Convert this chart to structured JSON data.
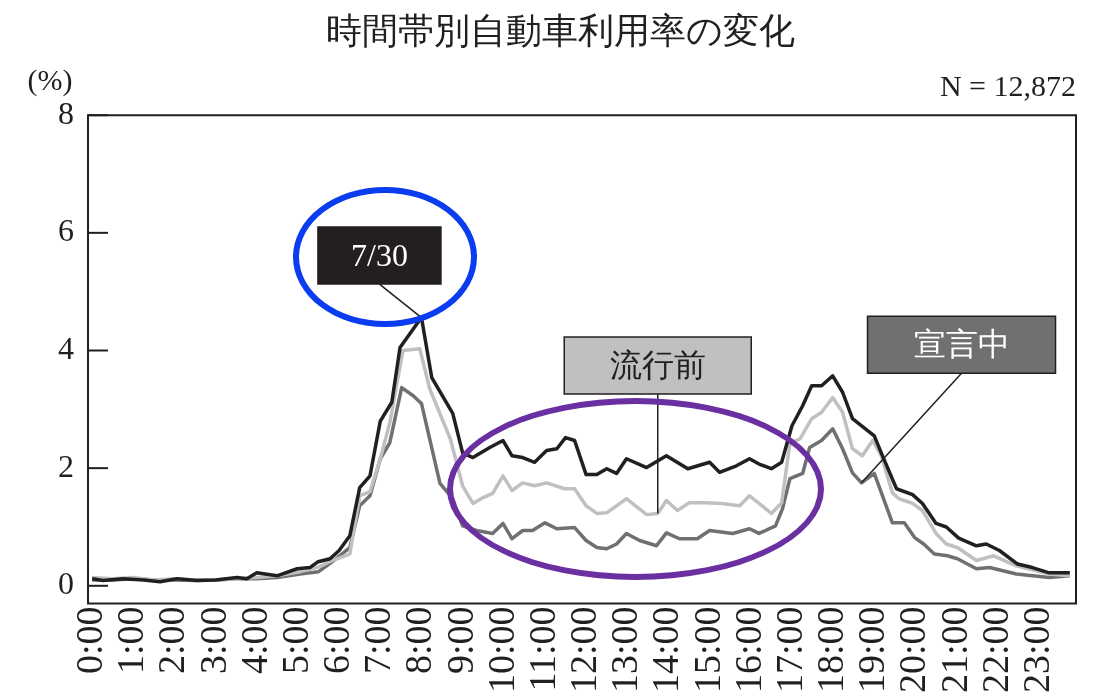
{
  "chart_data": {
    "type": "line",
    "title": "時間帯別自動車利用率の変化",
    "ylabel": "(%)",
    "annotations": [
      "N = 12,872"
    ],
    "xlim": [
      -0.1,
      23.9
    ],
    "ylim": [
      -0.3,
      8
    ],
    "yticks": [
      0,
      2,
      4,
      6,
      8
    ],
    "xticks": [
      {
        "value": 0,
        "label": "0:00"
      },
      {
        "value": 1,
        "label": "1:00"
      },
      {
        "value": 2,
        "label": "2:00"
      },
      {
        "value": 3,
        "label": "3:00"
      },
      {
        "value": 4,
        "label": "4:00"
      },
      {
        "value": 5,
        "label": "5:00"
      },
      {
        "value": 6,
        "label": "6:00"
      },
      {
        "value": 7,
        "label": "7:00"
      },
      {
        "value": 8,
        "label": "8:00"
      },
      {
        "value": 9,
        "label": "9:00"
      },
      {
        "value": 10,
        "label": "10:00"
      },
      {
        "value": 11,
        "label": "11:00"
      },
      {
        "value": 12,
        "label": "12:00"
      },
      {
        "value": 13,
        "label": "13:00"
      },
      {
        "value": 14,
        "label": "14:00"
      },
      {
        "value": 15,
        "label": "15:00"
      },
      {
        "value": 16,
        "label": "16:00"
      },
      {
        "value": 17,
        "label": "17:00"
      },
      {
        "value": 18,
        "label": "18:00"
      },
      {
        "value": 19,
        "label": "19:00"
      },
      {
        "value": 20,
        "label": "20:00"
      },
      {
        "value": 21,
        "label": "21:00"
      },
      {
        "value": 22,
        "label": "22:00"
      },
      {
        "value": 23,
        "label": "23:00"
      }
    ],
    "grid": false,
    "legend": false,
    "marker": "none",
    "line_style": "solid",
    "series": [
      {
        "name": "7/30",
        "color": "#231f20",
        "x": [
          0,
          0.27,
          0.75,
          1.25,
          1.65,
          2.06,
          2.55,
          3,
          3.52,
          3.76,
          4,
          4.49,
          4.98,
          5.29,
          5.49,
          5.78,
          6,
          6.26,
          6.5,
          6.75,
          7,
          7.28,
          7.48,
          8,
          8.25,
          8.76,
          9,
          9.25,
          9.66,
          9.98,
          10.2,
          10.46,
          10.75,
          11.04,
          11.29,
          11.5,
          11.72,
          12,
          12.26,
          12.5,
          12.74,
          12.98,
          13.47,
          13.95,
          14.47,
          15,
          15.24,
          15.65,
          15.97,
          16.2,
          16.5,
          16.75,
          17,
          17.26,
          17.48,
          17.72,
          17.99,
          18.23,
          18.47,
          19,
          19.2,
          19.54,
          19.93,
          20.17,
          20.5,
          20.75,
          21.05,
          21.48,
          21.72,
          22.04,
          22.48,
          22.84,
          23.25,
          23.75
        ],
        "values": [
          0.12,
          0.09,
          0.12,
          0.1,
          0.07,
          0.12,
          0.09,
          0.1,
          0.14,
          0.12,
          0.22,
          0.17,
          0.29,
          0.31,
          0.41,
          0.46,
          0.6,
          0.85,
          1.67,
          1.87,
          2.8,
          3.12,
          4.05,
          4.56,
          3.54,
          2.93,
          2.26,
          2.18,
          2.35,
          2.47,
          2.21,
          2.18,
          2.1,
          2.3,
          2.33,
          2.52,
          2.47,
          1.89,
          1.89,
          1.99,
          1.91,
          2.16,
          2.01,
          2.21,
          1.99,
          2.1,
          1.93,
          2.04,
          2.16,
          2.07,
          1.99,
          2.1,
          2.72,
          3.06,
          3.4,
          3.4,
          3.57,
          3.29,
          2.84,
          2.55,
          2.21,
          1.65,
          1.55,
          1.4,
          1.06,
          1.0,
          0.81,
          0.68,
          0.71,
          0.6,
          0.37,
          0.31,
          0.22,
          0.22
        ]
      },
      {
        "name": "流行前",
        "color": "#c0c0c2",
        "x": [
          0,
          0.5,
          1,
          1.5,
          2,
          2.5,
          3,
          3.5,
          4,
          4.5,
          5.05,
          5.5,
          5.8,
          6.26,
          6.5,
          6.75,
          7,
          7.23,
          7.55,
          7.96,
          8.2,
          8.7,
          9,
          9.25,
          9.5,
          9.73,
          9.98,
          10.2,
          10.46,
          10.75,
          11.04,
          11.48,
          11.72,
          12,
          12.26,
          12.5,
          12.98,
          13.47,
          13.74,
          13.95,
          14.22,
          14.5,
          14.9,
          15.3,
          15.73,
          15.97,
          16.2,
          16.5,
          16.75,
          16.95,
          17.2,
          17.48,
          17.72,
          17.99,
          18.23,
          18.47,
          18.71,
          18.96,
          19.17,
          19.44,
          19.6,
          19.93,
          20.17,
          20.5,
          20.75,
          21.02,
          21.48,
          21.9,
          22.45,
          23.25,
          23.75
        ],
        "values": [
          0.14,
          0.12,
          0.14,
          0.1,
          0.12,
          0.1,
          0.1,
          0.12,
          0.14,
          0.17,
          0.24,
          0.32,
          0.42,
          0.54,
          1.53,
          1.6,
          2.16,
          2.77,
          4.0,
          4.03,
          3.35,
          2.5,
          1.7,
          1.4,
          1.5,
          1.57,
          1.87,
          1.62,
          1.75,
          1.7,
          1.75,
          1.65,
          1.65,
          1.36,
          1.23,
          1.24,
          1.48,
          1.21,
          1.23,
          1.45,
          1.28,
          1.41,
          1.41,
          1.4,
          1.36,
          1.53,
          1.4,
          1.23,
          1.41,
          2.42,
          2.5,
          2.84,
          2.95,
          3.2,
          2.95,
          2.33,
          2.21,
          2.47,
          2.21,
          1.58,
          1.48,
          1.4,
          1.28,
          0.89,
          0.71,
          0.65,
          0.43,
          0.51,
          0.34,
          0.2,
          0.17
        ]
      },
      {
        "name": "宣言中",
        "color": "#707072",
        "x": [
          0,
          0.5,
          1,
          1.5,
          2,
          2.5,
          3,
          3.5,
          4,
          4.5,
          5.05,
          5.5,
          5.8,
          6.26,
          6.5,
          6.75,
          7,
          7.23,
          7.52,
          7.8,
          8,
          8.45,
          8.76,
          9,
          9.34,
          9.73,
          9.98,
          10.2,
          10.46,
          10.7,
          11,
          11.29,
          11.72,
          12,
          12.26,
          12.5,
          12.74,
          12.98,
          13.3,
          13.71,
          13.95,
          14.27,
          14.7,
          15,
          15.56,
          15.97,
          16.2,
          16.6,
          16.77,
          16.95,
          17.26,
          17.43,
          17.72,
          17.99,
          18.23,
          18.47,
          18.69,
          19,
          19.44,
          19.73,
          19.98,
          20.2,
          20.46,
          20.78,
          21.02,
          21.48,
          21.8,
          22.45,
          23.25,
          23.75
        ],
        "values": [
          0.1,
          0.1,
          0.12,
          0.1,
          0.1,
          0.09,
          0.1,
          0.12,
          0.12,
          0.14,
          0.2,
          0.24,
          0.39,
          0.65,
          1.36,
          1.53,
          2.16,
          2.43,
          3.37,
          3.23,
          3.1,
          1.74,
          1.48,
          1.02,
          0.94,
          0.89,
          1.06,
          0.8,
          0.94,
          0.94,
          1.07,
          0.97,
          0.99,
          0.77,
          0.65,
          0.63,
          0.71,
          0.89,
          0.77,
          0.68,
          0.9,
          0.8,
          0.8,
          0.94,
          0.89,
          0.97,
          0.89,
          1.02,
          1.31,
          1.82,
          1.91,
          2.35,
          2.47,
          2.67,
          2.33,
          1.92,
          1.75,
          1.91,
          1.07,
          1.07,
          0.82,
          0.71,
          0.54,
          0.51,
          0.46,
          0.29,
          0.31,
          0.2,
          0.14,
          0.17
        ]
      }
    ]
  }
}
